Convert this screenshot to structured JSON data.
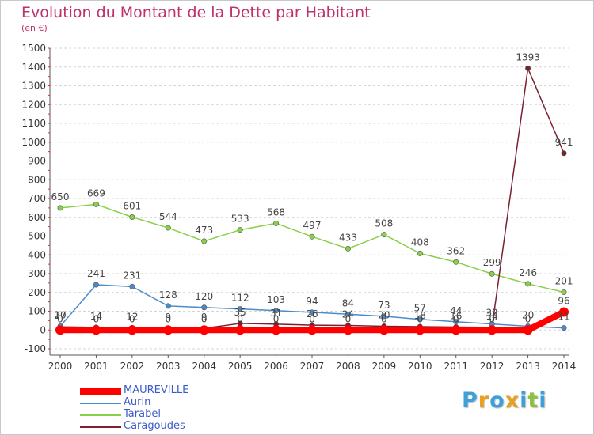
{
  "chart_data": {
    "type": "line",
    "title": "Evolution du Montant de la Dette par Habitant",
    "subtitle": "(en €)",
    "x": [
      2000,
      2001,
      2002,
      2003,
      2004,
      2005,
      2006,
      2007,
      2008,
      2009,
      2010,
      2011,
      2012,
      2013,
      2014
    ],
    "yticks": [
      -100,
      0,
      100,
      200,
      300,
      400,
      500,
      600,
      700,
      800,
      900,
      1000,
      1100,
      1200,
      1300,
      1400,
      1500
    ],
    "ylim": [
      -100,
      1500
    ],
    "grid": "horizontal-dashed",
    "legend_position": "bottom-left",
    "series": [
      {
        "name": "MAUREVILLE",
        "color": "#ff0000",
        "values": [
          0,
          0,
          0,
          0,
          0,
          0,
          0,
          0,
          0,
          0,
          0,
          0,
          0,
          0,
          96
        ],
        "labels": [
          "0",
          "0",
          "0",
          "0",
          "0",
          "0",
          "0",
          "0",
          "0",
          "0",
          "0",
          "0",
          "0",
          "0",
          "96"
        ]
      },
      {
        "name": "Aurin",
        "color": "#4a8cc8",
        "values": [
          20,
          241,
          231,
          128,
          120,
          112,
          103,
          94,
          84,
          73,
          57,
          44,
          32,
          20,
          11
        ],
        "labels": [
          "20",
          "241",
          "231",
          "128",
          "120",
          "112",
          "103",
          "94",
          "84",
          "73",
          "57",
          "44",
          "32",
          "20",
          "11"
        ]
      },
      {
        "name": "Tarabel",
        "color": "#88d048",
        "values": [
          650,
          669,
          601,
          544,
          473,
          533,
          568,
          497,
          433,
          508,
          408,
          362,
          299,
          246,
          201
        ],
        "labels": [
          "650",
          "669",
          "601",
          "544",
          "473",
          "533",
          "568",
          "497",
          "433",
          "508",
          "408",
          "362",
          "299",
          "246",
          "201"
        ]
      },
      {
        "name": "Caragoudes",
        "color": "#7a2030",
        "values": [
          17,
          14,
          12,
          9,
          9,
          35,
          31,
          26,
          24,
          20,
          18,
          16,
          14,
          1393,
          941
        ],
        "labels": [
          "17",
          "14",
          "12",
          "9",
          "9",
          "35",
          "31",
          "26",
          "24",
          "20",
          "18",
          "16",
          "14",
          "1393",
          "941"
        ]
      }
    ]
  },
  "logo": {
    "letters": [
      "P",
      "r",
      "o",
      "x",
      "i",
      "t",
      "i"
    ],
    "colors": [
      "#3ea0d8",
      "#e8a020",
      "#3ea0d8",
      "#e8a020",
      "#3ea0d8",
      "#8cc040",
      "#3ea0d8"
    ]
  }
}
